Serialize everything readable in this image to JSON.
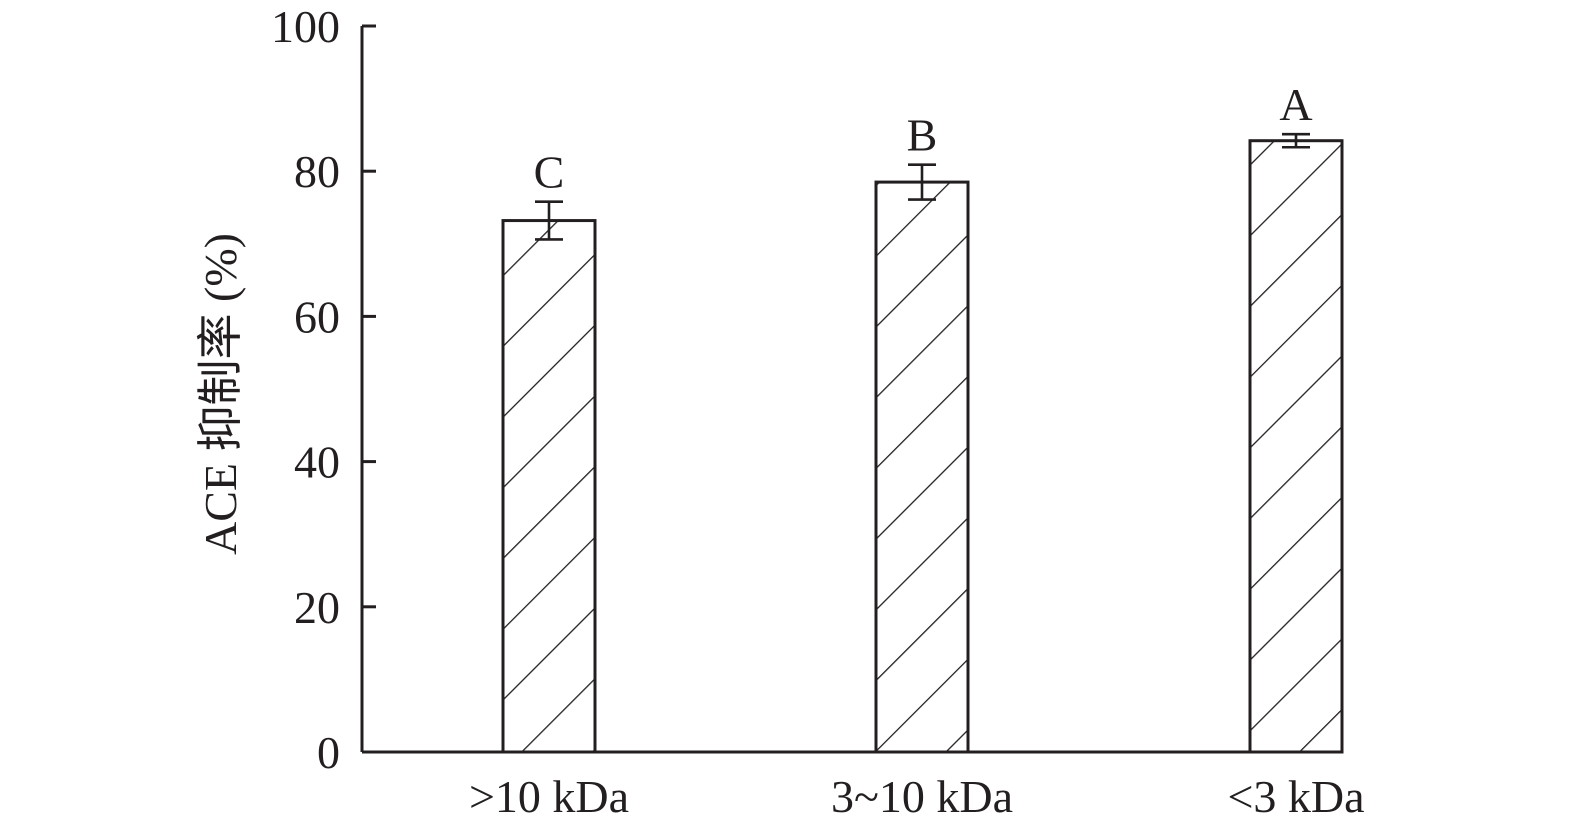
{
  "chart_data": {
    "type": "bar",
    "categories": [
      ">10 kDa",
      "3~10 kDa",
      "<3 kDa"
    ],
    "values": [
      73.2,
      78.5,
      84.2
    ],
    "errors": [
      2.6,
      2.4,
      0.9
    ],
    "significance_labels": [
      "C",
      "B",
      "A"
    ],
    "title": "",
    "xlabel": "",
    "ylabel": "ACE 抑制率 (%)",
    "ylim": [
      0,
      100
    ],
    "yticks": [
      "0",
      "20",
      "40",
      "60",
      "80",
      "100"
    ],
    "bar_pattern": "diagonal-hatch",
    "grid": false,
    "legend": "none",
    "colors": {
      "ink": "#231f20",
      "background": "#ffffff"
    }
  }
}
